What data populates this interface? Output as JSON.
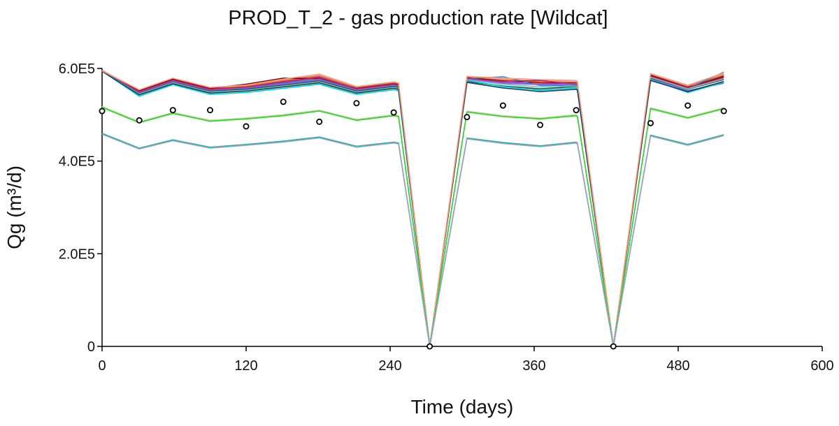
{
  "chart_data": {
    "type": "line",
    "title": "PROD_T_2 - gas production rate [Wildcat]",
    "xlabel": "Time (days)",
    "ylabel": "Qg (m³/d)",
    "xlim": [
      0,
      600
    ],
    "ylim": [
      0,
      600000
    ],
    "x_ticks": [
      0,
      120,
      240,
      360,
      480,
      600
    ],
    "x_tick_labels": [
      "0",
      "120",
      "240",
      "360",
      "480",
      "600"
    ],
    "y_ticks": [
      0,
      200000,
      400000,
      600000
    ],
    "y_tick_labels": [
      "0",
      "2.0E5",
      "4.0E5",
      "6.0E5"
    ],
    "grid": false,
    "legend": "none",
    "x": [
      0,
      31,
      59,
      90,
      120,
      151,
      181,
      212,
      243,
      247,
      273,
      304,
      334,
      365,
      395,
      396,
      426,
      457,
      488,
      518
    ],
    "series": [
      {
        "color": "#f08080",
        "values": [
          596000,
          553000,
          578000,
          558000,
          563000,
          575000,
          585000,
          560000,
          570000,
          568000,
          0,
          582000,
          578000,
          575000,
          573000,
          571000,
          0,
          588000,
          562000,
          588000
        ]
      },
      {
        "color": "#c87137",
        "values": [
          595000,
          551000,
          576000,
          556000,
          561000,
          573000,
          583000,
          558000,
          568000,
          566000,
          0,
          580000,
          575000,
          572000,
          570000,
          568000,
          0,
          586000,
          560000,
          585000
        ]
      },
      {
        "color": "#6a5acd",
        "values": [
          594000,
          549000,
          574000,
          554000,
          559000,
          570000,
          580000,
          556000,
          566000,
          564000,
          0,
          579000,
          570000,
          566000,
          566000,
          564000,
          0,
          584000,
          558000,
          582000
        ]
      },
      {
        "color": "#8b0000",
        "values": [
          595000,
          552000,
          577000,
          557000,
          566000,
          579000,
          578000,
          557000,
          567000,
          565000,
          0,
          580000,
          573000,
          569000,
          568000,
          566000,
          0,
          585000,
          559000,
          583000
        ]
      },
      {
        "color": "#4682b4",
        "values": [
          594000,
          548000,
          572000,
          553000,
          558000,
          568000,
          577000,
          554000,
          564000,
          562000,
          0,
          578000,
          582000,
          563000,
          564000,
          562000,
          0,
          582000,
          557000,
          592000
        ]
      },
      {
        "color": "#c71585",
        "values": [
          594000,
          550000,
          575000,
          555000,
          560000,
          571000,
          581000,
          556000,
          566000,
          564000,
          0,
          578000,
          572000,
          574000,
          565000,
          563000,
          0,
          583000,
          558000,
          580000
        ]
      },
      {
        "color": "#7b68ee",
        "values": [
          594000,
          547000,
          571000,
          552000,
          556000,
          566000,
          575000,
          552000,
          562000,
          560000,
          0,
          577000,
          568000,
          565000,
          567000,
          565000,
          0,
          578000,
          552000,
          568000
        ]
      },
      {
        "color": "#2f4f4f",
        "values": [
          594000,
          546000,
          570000,
          551000,
          555000,
          564000,
          573000,
          551000,
          561000,
          559000,
          0,
          572000,
          562000,
          556000,
          561000,
          559000,
          0,
          580000,
          555000,
          576000
        ]
      },
      {
        "color": "#66cdaa",
        "values": [
          594000,
          545000,
          569000,
          549000,
          553000,
          562000,
          571000,
          549000,
          559000,
          557000,
          0,
          575000,
          566000,
          560000,
          562000,
          560000,
          0,
          581000,
          556000,
          578000
        ]
      },
      {
        "color": "#00ced1",
        "values": [
          594000,
          540000,
          565000,
          544000,
          548000,
          557000,
          566000,
          544000,
          554000,
          552000,
          0,
          574000,
          561000,
          553000,
          558000,
          556000,
          0,
          576000,
          548000,
          570000
        ]
      },
      {
        "color": "#1e3a5f",
        "values": [
          594000,
          543000,
          567000,
          547000,
          551000,
          560000,
          569000,
          547000,
          557000,
          555000,
          0,
          570000,
          558000,
          550000,
          555000,
          553000,
          0,
          574000,
          550000,
          572000
        ]
      },
      {
        "color": "#ffa07a",
        "values": [
          595000,
          554000,
          579000,
          559000,
          564000,
          577000,
          588000,
          561000,
          571000,
          569000,
          0,
          583000,
          579000,
          576000,
          574000,
          572000,
          0,
          589000,
          564000,
          590000
        ]
      },
      {
        "color": "#b0e080",
        "values": [
          518000,
          485000,
          505000,
          488000,
          493000,
          500000,
          510000,
          490000,
          500000,
          498000,
          0,
          508000,
          498000,
          493000,
          500000,
          498000,
          0,
          515000,
          495000,
          515000
        ]
      },
      {
        "color": "#32cd32",
        "values": [
          516000,
          483000,
          503000,
          486000,
          491000,
          498000,
          508000,
          488000,
          498000,
          496000,
          0,
          506000,
          496000,
          491000,
          498000,
          496000,
          0,
          513000,
          493000,
          513000
        ]
      },
      {
        "color": "#20b2aa",
        "values": [
          460000,
          428000,
          446000,
          430000,
          436000,
          443000,
          452000,
          432000,
          441000,
          439000,
          0,
          450000,
          440000,
          433000,
          441000,
          439000,
          0,
          456000,
          436000,
          457000
        ]
      },
      {
        "color": "#a0a0c0",
        "values": [
          458000,
          426000,
          444000,
          428000,
          434000,
          441000,
          450000,
          430000,
          439000,
          437000,
          0,
          448000,
          438000,
          431000,
          439000,
          437000,
          0,
          454000,
          434000,
          455000
        ]
      }
    ],
    "observed": {
      "x": [
        0,
        31,
        59,
        90,
        120,
        151,
        181,
        212,
        243,
        273,
        304,
        334,
        365,
        395,
        426,
        457,
        488,
        518
      ],
      "values": [
        508000,
        488000,
        510000,
        510000,
        475000,
        528000,
        485000,
        525000,
        505000,
        0,
        495000,
        520000,
        478000,
        510000,
        0,
        482000,
        520000,
        508000
      ]
    }
  }
}
